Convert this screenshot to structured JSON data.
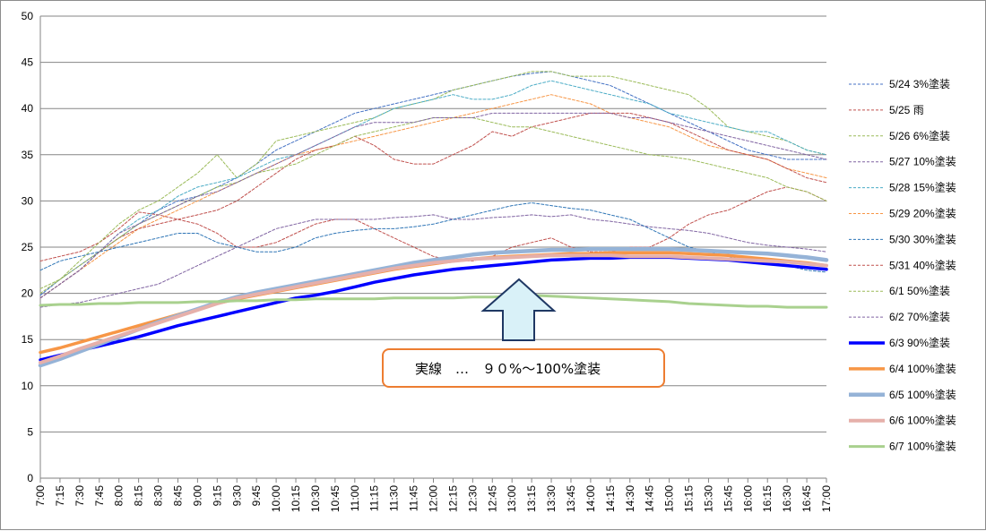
{
  "chart_data": {
    "type": "line",
    "title": "",
    "xlabel": "",
    "ylabel": "",
    "ylim": [
      0,
      50
    ],
    "yticks": [
      0,
      5,
      10,
      15,
      20,
      25,
      30,
      35,
      40,
      45,
      50
    ],
    "grid": true,
    "legend_position": "right",
    "x": [
      "7:00",
      "7:15",
      "7:30",
      "7:45",
      "8:00",
      "8:15",
      "8:30",
      "8:45",
      "9:00",
      "9:15",
      "9:30",
      "9:45",
      "10:00",
      "10:15",
      "10:30",
      "10:45",
      "11:00",
      "11:15",
      "11:30",
      "11:45",
      "12:00",
      "12:15",
      "12:30",
      "12:45",
      "13:00",
      "13:15",
      "13:30",
      "13:45",
      "14:00",
      "14:15",
      "14:30",
      "14:45",
      "15:00",
      "15:15",
      "15:30",
      "15:45",
      "16:00",
      "16:15",
      "16:30",
      "16:45",
      "17:00"
    ],
    "series": [
      {
        "name": "5/24 3%塗装",
        "color": "#4472c4",
        "dash": true,
        "width": 1,
        "values": [
          19.8,
          21.5,
          23.0,
          24.5,
          26.0,
          27.5,
          29.0,
          30.0,
          30.5,
          31.5,
          32.5,
          34.0,
          35.5,
          36.5,
          37.5,
          38.5,
          39.5,
          40.0,
          40.5,
          41.0,
          41.5,
          42.0,
          42.5,
          43.0,
          43.5,
          43.8,
          44.0,
          43.5,
          43.0,
          42.5,
          41.5,
          40.5,
          39.5,
          38.5,
          37.5,
          36.5,
          35.5,
          35.0,
          34.5,
          34.5,
          34.5
        ]
      },
      {
        "name": "5/25 雨",
        "color": "#c0504d",
        "dash": true,
        "width": 1,
        "values": [
          23.5,
          24.0,
          24.5,
          25.5,
          27.0,
          28.8,
          28.5,
          28.0,
          27.5,
          26.5,
          25.0,
          25.0,
          25.5,
          26.5,
          27.5,
          28.0,
          28.0,
          27.0,
          26.0,
          25.0,
          24.0,
          23.5,
          23.5,
          24.0,
          25.0,
          25.5,
          26.0,
          25.0,
          24.5,
          24.5,
          25.0,
          25.0,
          26.0,
          27.5,
          28.5,
          29.0,
          30.0,
          31.0,
          31.5,
          31.0,
          30.0
        ]
      },
      {
        "name": "5/26 6%塗装",
        "color": "#9bbb59",
        "dash": true,
        "width": 1,
        "values": [
          20.5,
          21.5,
          23.5,
          25.5,
          27.5,
          29.0,
          30.0,
          31.5,
          33.0,
          35.0,
          32.5,
          34.0,
          36.5,
          37.0,
          37.5,
          38.0,
          38.5,
          39.0,
          40.0,
          40.5,
          41.0,
          42.0,
          42.5,
          43.0,
          43.5,
          44.0,
          44.0,
          43.5,
          43.5,
          43.5,
          43.0,
          42.5,
          42.0,
          41.5,
          40.0,
          38.0,
          37.5,
          37.0,
          36.5,
          35.5,
          35.0
        ]
      },
      {
        "name": "5/27 10%塗装",
        "color": "#8064a2",
        "dash": true,
        "width": 1,
        "values": [
          18.5,
          18.8,
          19.0,
          19.5,
          20.0,
          20.5,
          21.0,
          22.0,
          23.0,
          24.0,
          25.0,
          26.0,
          27.0,
          27.5,
          28.0,
          28.0,
          28.0,
          28.0,
          28.2,
          28.3,
          28.5,
          28.0,
          28.0,
          28.2,
          28.3,
          28.5,
          28.3,
          28.5,
          28.0,
          27.8,
          27.5,
          27.2,
          27.0,
          26.8,
          26.5,
          26.0,
          25.5,
          25.2,
          25.0,
          24.8,
          24.5
        ]
      },
      {
        "name": "5/28 15%塗装",
        "color": "#4bacc6",
        "dash": true,
        "width": 1,
        "values": [
          19.5,
          21.0,
          22.5,
          24.5,
          26.5,
          28.0,
          29.0,
          30.5,
          31.5,
          32.0,
          32.5,
          33.5,
          34.5,
          35.0,
          36.0,
          37.0,
          38.0,
          39.0,
          40.0,
          40.5,
          41.0,
          41.5,
          41.0,
          41.0,
          41.5,
          42.5,
          43.0,
          42.5,
          42.0,
          41.5,
          41.0,
          40.5,
          39.5,
          39.0,
          38.5,
          38.0,
          37.5,
          37.5,
          36.5,
          35.5,
          35.0
        ]
      },
      {
        "name": "5/29 20%塗装",
        "color": "#f79646",
        "dash": true,
        "width": 1,
        "values": [
          19.5,
          21.0,
          22.5,
          24.0,
          25.5,
          27.0,
          28.0,
          29.0,
          30.0,
          31.0,
          32.0,
          33.0,
          34.0,
          35.0,
          35.5,
          36.0,
          36.5,
          37.0,
          37.5,
          38.0,
          38.5,
          39.0,
          39.5,
          40.0,
          40.5,
          41.0,
          41.5,
          41.0,
          40.5,
          39.5,
          39.0,
          38.5,
          38.0,
          37.0,
          36.0,
          35.5,
          35.0,
          34.5,
          33.5,
          33.0,
          32.5
        ]
      },
      {
        "name": "5/30 30%塗装",
        "color": "#2e75b6",
        "dash": true,
        "width": 1,
        "values": [
          22.5,
          23.5,
          24.0,
          24.5,
          25.0,
          25.5,
          26.0,
          26.5,
          26.5,
          25.5,
          25.0,
          24.5,
          24.5,
          25.0,
          26.0,
          26.5,
          26.8,
          27.0,
          27.0,
          27.2,
          27.5,
          28.0,
          28.5,
          29.0,
          29.5,
          29.8,
          29.5,
          29.2,
          29.0,
          28.5,
          28.0,
          27.0,
          26.0,
          25.0,
          24.5,
          24.0,
          23.5,
          23.2,
          23.0,
          22.5,
          22.3
        ]
      },
      {
        "name": "5/31 40%塗装",
        "color": "#c0504d",
        "dash": true,
        "width": 1,
        "values": [
          19.5,
          21.0,
          22.5,
          24.5,
          26.0,
          27.0,
          27.5,
          28.0,
          28.5,
          29.0,
          30.0,
          31.5,
          33.0,
          34.5,
          35.5,
          36.0,
          37.0,
          36.0,
          34.5,
          34.0,
          34.0,
          35.0,
          36.0,
          37.5,
          37.0,
          38.0,
          38.5,
          39.0,
          39.5,
          39.5,
          39.5,
          39.0,
          38.5,
          37.5,
          36.5,
          35.5,
          35.0,
          34.5,
          33.5,
          32.5,
          32.0
        ]
      },
      {
        "name": "6/1 50%塗装",
        "color": "#9bbb59",
        "dash": true,
        "width": 1,
        "values": [
          20.0,
          21.5,
          23.0,
          24.5,
          26.0,
          27.5,
          28.5,
          29.5,
          30.5,
          31.5,
          32.0,
          33.0,
          33.5,
          34.0,
          35.0,
          36.0,
          37.0,
          37.5,
          38.0,
          38.5,
          39.0,
          39.0,
          39.0,
          38.5,
          38.0,
          38.0,
          37.5,
          37.0,
          36.5,
          36.0,
          35.5,
          35.0,
          34.8,
          34.5,
          34.0,
          33.5,
          33.0,
          32.5,
          31.5,
          31.0,
          30.0
        ]
      },
      {
        "name": "6/2 70%塗装",
        "color": "#8064a2",
        "dash": true,
        "width": 1,
        "values": [
          19.5,
          21.0,
          22.5,
          24.5,
          26.5,
          27.5,
          28.5,
          29.5,
          30.5,
          31.0,
          32.0,
          33.0,
          34.0,
          35.0,
          36.0,
          37.0,
          38.0,
          38.5,
          38.5,
          38.5,
          39.0,
          39.0,
          39.0,
          39.5,
          39.5,
          39.5,
          39.5,
          39.5,
          39.5,
          39.5,
          39.0,
          39.0,
          38.5,
          38.0,
          37.5,
          37.0,
          36.5,
          36.0,
          35.5,
          35.0,
          34.5
        ]
      },
      {
        "name": "6/3 90%塗装",
        "color": "#0000ff",
        "dash": false,
        "width": 3.5,
        "values": [
          12.8,
          13.3,
          13.8,
          14.3,
          14.8,
          15.3,
          15.9,
          16.5,
          17.0,
          17.5,
          18.0,
          18.5,
          19.0,
          19.5,
          19.8,
          20.2,
          20.7,
          21.2,
          21.6,
          22.0,
          22.3,
          22.6,
          22.8,
          23.0,
          23.2,
          23.4,
          23.6,
          23.7,
          23.8,
          23.8,
          23.9,
          23.9,
          23.9,
          23.8,
          23.7,
          23.6,
          23.4,
          23.2,
          23.0,
          22.8,
          22.6
        ]
      },
      {
        "name": "6/4 100%塗装",
        "color": "#f79646",
        "dash": false,
        "width": 3.5,
        "values": [
          13.6,
          14.1,
          14.7,
          15.3,
          15.9,
          16.5,
          17.1,
          17.7,
          18.3,
          18.9,
          19.4,
          19.8,
          20.2,
          20.6,
          21.0,
          21.4,
          21.8,
          22.2,
          22.6,
          22.9,
          23.2,
          23.5,
          23.7,
          23.9,
          24.0,
          24.1,
          24.2,
          24.3,
          24.3,
          24.4,
          24.4,
          24.4,
          24.4,
          24.3,
          24.2,
          24.1,
          23.9,
          23.7,
          23.5,
          23.3,
          23.0
        ]
      },
      {
        "name": "6/5 100%塗装",
        "color": "#95b3d7",
        "dash": false,
        "width": 4.5,
        "values": [
          12.2,
          12.9,
          13.7,
          14.5,
          15.3,
          16.1,
          16.9,
          17.6,
          18.3,
          19.0,
          19.6,
          20.1,
          20.5,
          20.9,
          21.3,
          21.7,
          22.1,
          22.5,
          22.9,
          23.3,
          23.6,
          23.9,
          24.2,
          24.4,
          24.5,
          24.6,
          24.7,
          24.7,
          24.8,
          24.8,
          24.8,
          24.8,
          24.8,
          24.7,
          24.6,
          24.5,
          24.4,
          24.3,
          24.1,
          23.9,
          23.6
        ]
      },
      {
        "name": "6/6 100%塗装",
        "color": "#e6b0aa",
        "dash": false,
        "width": 4,
        "values": [
          12.5,
          13.2,
          14.0,
          14.7,
          15.4,
          16.1,
          16.8,
          17.5,
          18.2,
          18.9,
          19.5,
          19.9,
          20.3,
          20.7,
          21.1,
          21.5,
          21.9,
          22.3,
          22.7,
          23.0,
          23.3,
          23.5,
          23.7,
          23.8,
          23.9,
          24.0,
          24.1,
          24.1,
          24.1,
          24.1,
          24.0,
          24.0,
          24.0,
          23.9,
          23.8,
          23.7,
          23.6,
          23.5,
          23.4,
          23.2,
          23.0
        ]
      },
      {
        "name": "6/7 100%塗装",
        "color": "#a9d18e",
        "dash": false,
        "width": 3,
        "values": [
          18.7,
          18.8,
          18.8,
          18.9,
          18.9,
          19.0,
          19.0,
          19.0,
          19.1,
          19.1,
          19.2,
          19.2,
          19.3,
          19.3,
          19.4,
          19.4,
          19.4,
          19.4,
          19.5,
          19.5,
          19.5,
          19.5,
          19.6,
          19.6,
          19.7,
          19.8,
          19.7,
          19.6,
          19.5,
          19.4,
          19.3,
          19.2,
          19.1,
          18.9,
          18.8,
          18.7,
          18.6,
          18.6,
          18.5,
          18.5,
          18.5
        ]
      }
    ],
    "annotation": {
      "text": "実線　…　９０%～100%塗装",
      "border_color": "#ed7d31",
      "arrow_fill": "#d9f1f8",
      "arrow_stroke": "#1f3864"
    }
  }
}
